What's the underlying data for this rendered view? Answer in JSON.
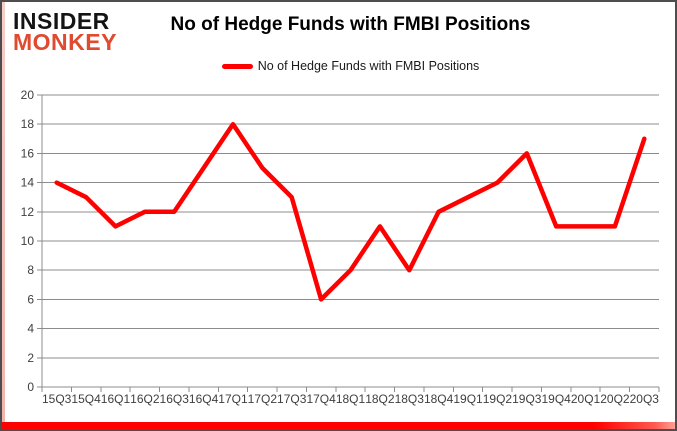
{
  "logo": {
    "line1": "INSIDER",
    "line2": "MONKEY"
  },
  "header": {
    "title": "No of Hedge Funds with FMBI Positions"
  },
  "legend": {
    "label": "No of Hedge Funds with FMBI Positions"
  },
  "chart_data": {
    "type": "line",
    "title": "No of Hedge Funds with FMBI Positions",
    "categories": [
      "15Q3",
      "15Q4",
      "16Q1",
      "16Q2",
      "16Q3",
      "16Q4",
      "17Q1",
      "17Q2",
      "17Q3",
      "17Q4",
      "18Q1",
      "18Q2",
      "18Q3",
      "18Q4",
      "19Q1",
      "19Q2",
      "19Q3",
      "19Q4",
      "20Q1",
      "20Q2",
      "20Q3"
    ],
    "series": [
      {
        "name": "No of Hedge Funds with FMBI Positions",
        "values": [
          14,
          13,
          11,
          12,
          12,
          15,
          18,
          15,
          13,
          6,
          8,
          11,
          8,
          12,
          13,
          14,
          16,
          11,
          11,
          11,
          17
        ]
      }
    ],
    "xlabel": "",
    "ylabel": "",
    "ylim": [
      0,
      20
    ],
    "yticks": [
      0,
      2,
      4,
      6,
      8,
      10,
      12,
      14,
      16,
      18,
      20
    ],
    "grid": true,
    "legend_position": "top-center",
    "line_color": "#ff0000",
    "line_width": 4.5,
    "gridline_color": "#8c8c8c",
    "axis_color": "#8c8c8c",
    "tick_label_color": "#3f3f3f"
  },
  "colors": {
    "logo_black": "#141414",
    "logo_red": "#e04a30",
    "accent_red": "#ff0000",
    "frame_border": "#4d4d4d",
    "bottom_bar_red": "#ff0000"
  }
}
